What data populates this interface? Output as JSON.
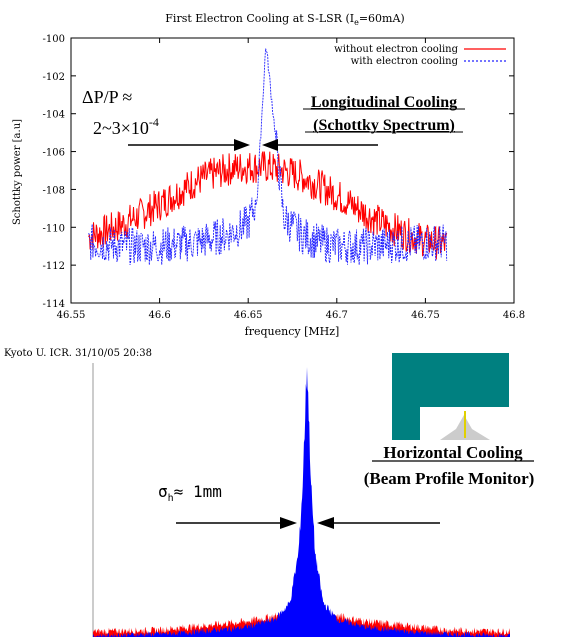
{
  "top": {
    "title": "First Electron Cooling at S-LSR (I",
    "title_sub": "e",
    "title_end": "=60mA)",
    "footer": "Kyoto U. ICR. 31/10/05 20:38",
    "annot_dp_line1": "ΔP/P ≈",
    "annot_dp_line2": "2~3×10",
    "annot_dp_exp": "-4",
    "annot_long_line1": "Longitudinal Cooling",
    "annot_long_line2": "(Schottky Spectrum)"
  },
  "bottom": {
    "annot_horiz_line1": "Horizontal Cooling",
    "annot_horiz_line2": "(Beam Profile Monitor)",
    "annot_sigma_sym": "σ",
    "annot_sigma_sub": "h",
    "annot_sigma_rest": "≈ 1mm"
  },
  "colors": {
    "without": "#ff0000",
    "with": "#2222ff",
    "inset_bg": "#008080",
    "profile_blue": "#0000ff",
    "profile_red": "#ff0000"
  },
  "chart_data": [
    {
      "type": "line",
      "title": "First Electron Cooling at S-LSR (Ie=60mA)",
      "xlabel": "frequency [MHz]",
      "ylabel": "Schottky power [a.u]",
      "xlim": [
        46.55,
        46.8
      ],
      "ylim": [
        -114,
        -100
      ],
      "xticks": [
        46.55,
        46.6,
        46.65,
        46.7,
        46.75,
        46.8
      ],
      "yticks": [
        -114,
        -112,
        -110,
        -108,
        -106,
        -104,
        -102,
        -100
      ],
      "legend": "top-right",
      "series": [
        {
          "name": "without electron cooling",
          "color": "#ff0000",
          "x": [
            46.56,
            46.57,
            46.58,
            46.59,
            46.6,
            46.61,
            46.62,
            46.63,
            46.64,
            46.65,
            46.66,
            46.67,
            46.68,
            46.69,
            46.7,
            46.71,
            46.72,
            46.73,
            46.74,
            46.75,
            46.762
          ],
          "values": [
            -110.5,
            -110.2,
            -109.8,
            -109.3,
            -108.8,
            -108.2,
            -107.6,
            -107.2,
            -106.9,
            -106.8,
            -106.8,
            -107.0,
            -107.3,
            -107.8,
            -108.3,
            -108.9,
            -109.5,
            -110.0,
            -110.4,
            -110.7,
            -110.9
          ]
        },
        {
          "name": "with electron cooling",
          "color": "#2222ff",
          "x": [
            46.56,
            46.57,
            46.58,
            46.59,
            46.6,
            46.61,
            46.62,
            46.63,
            46.64,
            46.65,
            46.655,
            46.66,
            46.665,
            46.67,
            46.68,
            46.69,
            46.7,
            46.71,
            46.72,
            46.73,
            46.74,
            46.75,
            46.762
          ],
          "values": [
            -110.8,
            -110.9,
            -111.0,
            -111.0,
            -111.0,
            -110.9,
            -110.8,
            -110.6,
            -110.3,
            -109.8,
            -108.5,
            -100.3,
            -104.8,
            -109.5,
            -110.4,
            -110.8,
            -111.0,
            -111.0,
            -111.0,
            -110.9,
            -110.9,
            -110.8,
            -110.8
          ]
        }
      ]
    },
    {
      "type": "area",
      "title": "",
      "xlabel": "",
      "ylabel": "",
      "xlim": [
        -1,
        1
      ],
      "ylim": [
        0,
        1
      ],
      "series": [
        {
          "color": "#0000ff",
          "x": [
            -1.0,
            -0.6,
            -0.3,
            -0.15,
            -0.08,
            -0.04,
            -0.02,
            0.0,
            0.02,
            0.04,
            0.08,
            0.15,
            0.3,
            0.6,
            1.0
          ],
          "values": [
            0.0,
            0.01,
            0.03,
            0.06,
            0.12,
            0.3,
            0.55,
            1.0,
            0.55,
            0.3,
            0.12,
            0.06,
            0.03,
            0.01,
            0.0
          ]
        },
        {
          "color": "#ff0000",
          "x": [
            -1.0,
            -0.7,
            -0.5,
            -0.3,
            -0.15,
            0.0,
            0.15,
            0.3,
            0.5,
            0.7,
            1.0
          ],
          "values": [
            0.015,
            0.02,
            0.035,
            0.05,
            0.07,
            0.09,
            0.07,
            0.05,
            0.035,
            0.02,
            0.015
          ]
        }
      ]
    }
  ]
}
